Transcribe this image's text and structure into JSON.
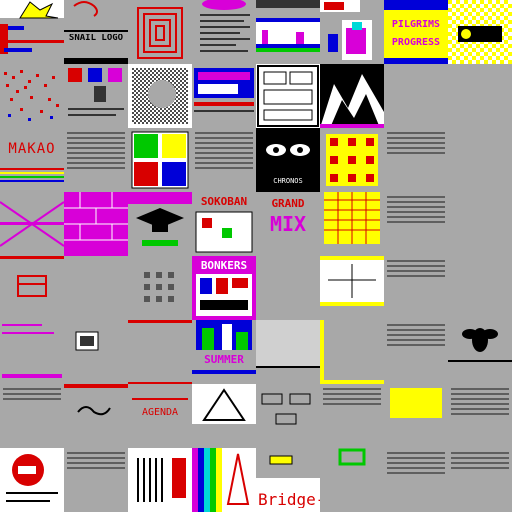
{
  "labels": {
    "snail_logo": "SNAIL LOGO",
    "pilgrims": "PILGRIMS",
    "progress": "PROGRESS",
    "makao": "MAKAO",
    "sokoban": "SOKOBAN",
    "grand": "GRAND",
    "mix": "MIX",
    "bonkers": "BONKERS",
    "summer": "SUMMER",
    "agenda": "AGENDA",
    "bridge": "Bridge-",
    "chronos": "CHRONOS"
  },
  "colors": {
    "background": "#a8a8a8",
    "red": "#d80000",
    "blue": "#0000d8",
    "magenta": "#d800d8",
    "yellow": "#ffff00",
    "green": "#00c800",
    "cyan": "#00d8d8",
    "black": "#000000",
    "white": "#ffffff"
  }
}
